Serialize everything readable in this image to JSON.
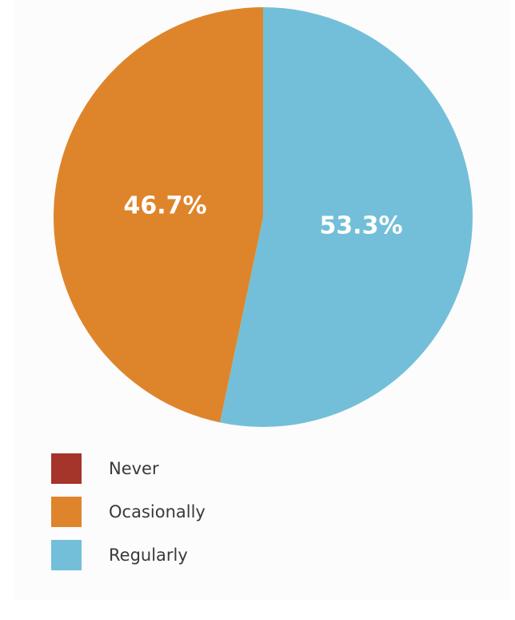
{
  "chart_data": {
    "type": "pie",
    "slices": [
      {
        "label": "Never",
        "value": 0,
        "value_label": "",
        "color": "#a5342a"
      },
      {
        "label": "Ocasionally",
        "value": 46.7,
        "value_label": "46.7%",
        "color": "#de852b"
      },
      {
        "label": "Regularly",
        "value": 53.3,
        "value_label": "53.3%",
        "color": "#73bfd9"
      }
    ],
    "start_angle": "12 o'clock",
    "direction": "clockwise, starting with Regularly",
    "legend_position": "bottom-left"
  },
  "legend": {
    "items": [
      {
        "label": "Never",
        "color": "#a5342a"
      },
      {
        "label": "Ocasionally",
        "color": "#de852b"
      },
      {
        "label": "Regularly",
        "color": "#73bfd9"
      }
    ]
  }
}
